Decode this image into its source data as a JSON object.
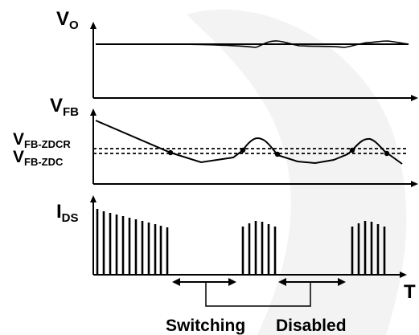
{
  "labels": {
    "vo_main": "V",
    "vo_sub": "O",
    "vfb_main": "V",
    "vfb_sub": "FB",
    "zdcr_main": "V",
    "zdcr_sub": "FB-ZDCR",
    "zdc_main": "V",
    "zdc_sub": "FB-ZDC",
    "ids_main": "I",
    "ids_sub": "DS",
    "time_axis": "T",
    "switching": "Switching",
    "disabled": "Disabled"
  },
  "colors": {
    "ink": "#000000",
    "watermark": "#f3f3f3"
  }
}
